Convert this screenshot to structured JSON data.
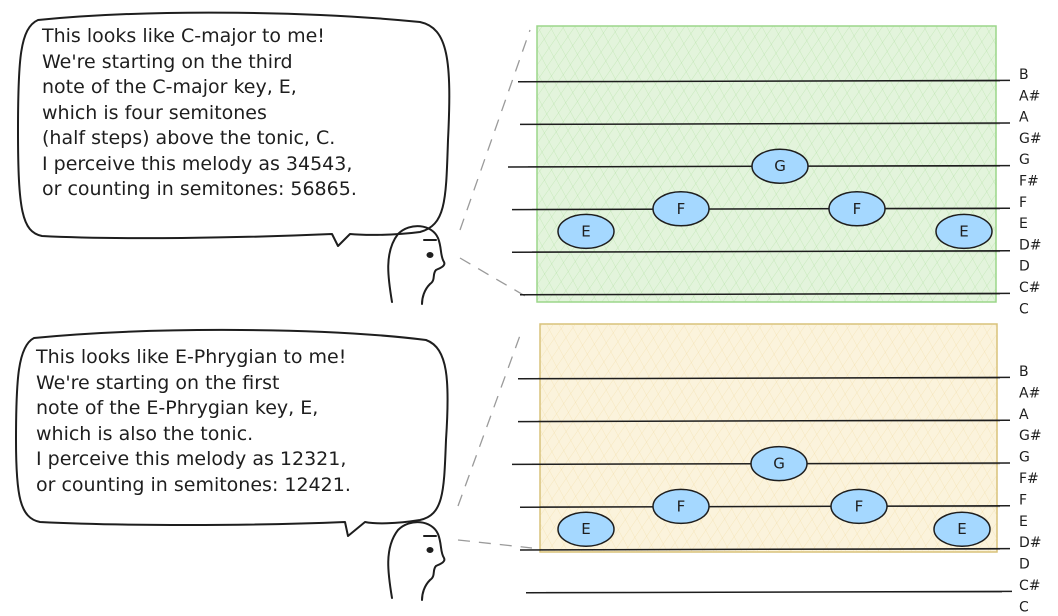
{
  "panels": [
    {
      "id": "c-major",
      "bubble_lines": [
        "This looks like C-major to me!",
        "We're starting on the third",
        "note of the C-major key, E,",
        "which is four semitones",
        "(half steps) above the tonic, C.",
        "I perceive this melody as 34543,",
        "or counting in semitones: 56865."
      ],
      "fill_color": "#e3f4dc",
      "hatch_color": "#9bd68a",
      "melody": [
        "E",
        "F",
        "G",
        "F",
        "E"
      ]
    },
    {
      "id": "e-phrygian",
      "bubble_lines": [
        "This looks like E-Phrygian to me!",
        "We're starting on the first",
        "note of the E-Phrygian key, E,",
        "which is also the tonic.",
        "I perceive this melody as 12321,",
        "or counting in semitones: 12421."
      ],
      "fill_color": "#fbf3dc",
      "hatch_color": "#ecd28f",
      "melody": [
        "E",
        "F",
        "G",
        "F",
        "E"
      ]
    }
  ],
  "pitch_labels": [
    "B",
    "A#",
    "A",
    "G#",
    "G",
    "F#",
    "F",
    "E",
    "D#",
    "D",
    "C#",
    "C"
  ],
  "note_color": "#a5d8ff",
  "stroke_color": "#1e1e1e"
}
